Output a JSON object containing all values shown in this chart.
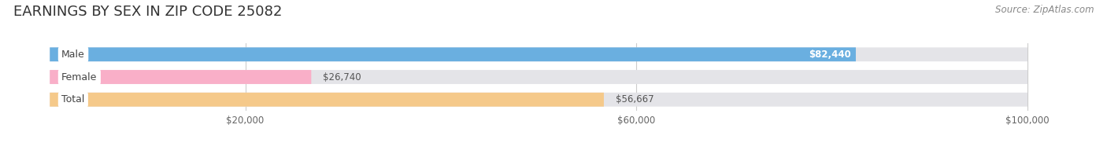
{
  "title": "EARNINGS BY SEX IN ZIP CODE 25082",
  "source": "Source: ZipAtlas.com",
  "categories": [
    "Male",
    "Female",
    "Total"
  ],
  "values": [
    82440,
    26740,
    56667
  ],
  "bar_colors": [
    "#6aafe0",
    "#f9afc8",
    "#f5c98a"
  ],
  "bar_bg_color": "#e4e4e8",
  "value_labels": [
    "$82,440",
    "$26,740",
    "$56,667"
  ],
  "value_label_inside": [
    true,
    false,
    false
  ],
  "xlim": [
    0,
    107000
  ],
  "xmin": 0,
  "xmax": 100000,
  "xticks": [
    20000,
    60000,
    100000
  ],
  "xtick_labels": [
    "$20,000",
    "$60,000",
    "$100,000"
  ],
  "label_font_color": "#444444",
  "title_font_color": "#333333",
  "title_fontsize": 13,
  "source_fontsize": 8.5,
  "bar_height": 0.62,
  "bg_color": "#ffffff",
  "figsize": [
    14.06,
    1.96
  ],
  "dpi": 100
}
